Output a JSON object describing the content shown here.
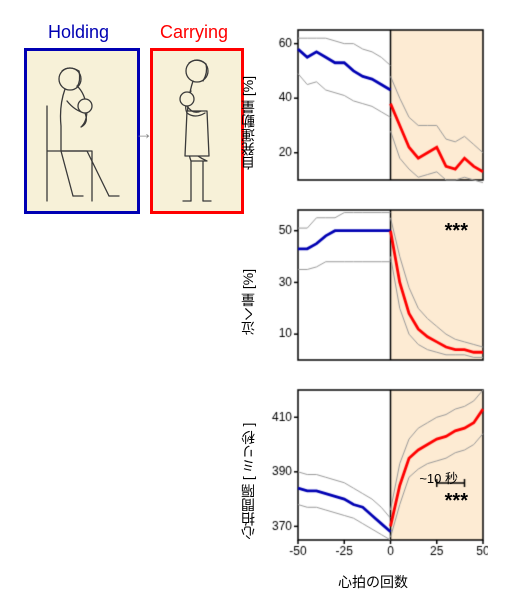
{
  "conditions": {
    "holding": {
      "label": "Holding",
      "color": "#0000b3",
      "box_border": "#0000b3"
    },
    "carrying": {
      "label": "Carrying",
      "color": "#ff0000",
      "box_border": "#ff0000"
    }
  },
  "illustration": {
    "box_background": "#f7f1d8",
    "arrow_glyph": "→",
    "arrow_color": "#888888",
    "stroke_color": "#3a3a3a"
  },
  "x_axis": {
    "label": "心拍の回数",
    "min": -50,
    "max": 50,
    "ticks": [
      -50,
      -25,
      0,
      25,
      50
    ]
  },
  "shading": {
    "right_half_color": "#fdebd3",
    "vline_color": "#000000"
  },
  "style": {
    "band_color": "#999999",
    "band_width": 1,
    "line_width_main": 2.8,
    "axis_color": "#000000",
    "tick_fontsize": 12,
    "label_fontsize": 14
  },
  "scale_bar": {
    "label": "~10 秒",
    "span": 15
  },
  "panels": [
    {
      "key": "voluntary_movement",
      "ylabel": "自発運動量 [%]",
      "ylim": [
        10,
        65
      ],
      "yticks": [
        20,
        40,
        60
      ],
      "significance": null,
      "series": {
        "x": [
          -50,
          -45,
          -40,
          -35,
          -30,
          -25,
          -20,
          -15,
          -10,
          -5,
          0,
          5,
          10,
          15,
          20,
          25,
          30,
          35,
          40,
          45,
          50
        ],
        "holding_mean": [
          58,
          55,
          57,
          55,
          53,
          53,
          50,
          48,
          47,
          45,
          43,
          null,
          null,
          null,
          null,
          null,
          null,
          null,
          null,
          null,
          null
        ],
        "holding_lo": [
          49,
          45,
          46,
          43,
          42,
          41,
          39,
          38,
          37,
          35,
          33,
          null,
          null,
          null,
          null,
          null,
          null,
          null,
          null,
          null,
          null
        ],
        "holding_hi": [
          62,
          62,
          62,
          62,
          61,
          60,
          60,
          58,
          57,
          55,
          52,
          null,
          null,
          null,
          null,
          null,
          null,
          null,
          null,
          null,
          null
        ],
        "carrying_mean": [
          null,
          null,
          null,
          null,
          null,
          null,
          null,
          null,
          null,
          null,
          38,
          30,
          22,
          18,
          20,
          22,
          15,
          14,
          18,
          15,
          13
        ],
        "carrying_lo": [
          null,
          null,
          null,
          null,
          null,
          null,
          null,
          null,
          null,
          null,
          28,
          18,
          14,
          11,
          12,
          13,
          10,
          10,
          11,
          10,
          9
        ],
        "carrying_hi": [
          null,
          null,
          null,
          null,
          null,
          null,
          null,
          null,
          null,
          null,
          48,
          40,
          33,
          30,
          30,
          30,
          25,
          24,
          26,
          23,
          20
        ]
      }
    },
    {
      "key": "crying",
      "ylabel": "泣く量 [%]",
      "ylim": [
        0,
        58
      ],
      "yticks": [
        10,
        30,
        50
      ],
      "significance": "***",
      "series": {
        "x": [
          -50,
          -45,
          -40,
          -35,
          -30,
          -25,
          -20,
          -15,
          -10,
          -5,
          0,
          5,
          10,
          15,
          20,
          25,
          30,
          35,
          40,
          45,
          50
        ],
        "holding_mean": [
          43,
          43,
          45,
          48,
          50,
          50,
          50,
          50,
          50,
          50,
          50,
          null,
          null,
          null,
          null,
          null,
          null,
          null,
          null,
          null,
          null
        ],
        "holding_lo": [
          35,
          35,
          36,
          38,
          38,
          38,
          38,
          38,
          38,
          38,
          38,
          null,
          null,
          null,
          null,
          null,
          null,
          null,
          null,
          null,
          null
        ],
        "holding_hi": [
          51,
          51,
          55,
          55,
          55,
          57,
          57,
          57,
          57,
          57,
          57,
          null,
          null,
          null,
          null,
          null,
          null,
          null,
          null,
          null,
          null
        ],
        "carrying_mean": [
          null,
          null,
          null,
          null,
          null,
          null,
          null,
          null,
          null,
          null,
          50,
          30,
          18,
          12,
          9,
          7,
          5,
          4,
          4,
          3,
          3
        ],
        "carrying_lo": [
          null,
          null,
          null,
          null,
          null,
          null,
          null,
          null,
          null,
          null,
          40,
          20,
          10,
          6,
          4,
          3,
          2,
          2,
          2,
          1,
          1
        ],
        "carrying_hi": [
          null,
          null,
          null,
          null,
          null,
          null,
          null,
          null,
          null,
          null,
          55,
          40,
          28,
          20,
          16,
          13,
          10,
          8,
          7,
          6,
          5
        ]
      }
    },
    {
      "key": "ibi",
      "ylabel": "心拍間隔 [ ミリ秒 ]",
      "ylim": [
        365,
        420
      ],
      "yticks": [
        370,
        390,
        410
      ],
      "significance": "***",
      "series": {
        "x": [
          -50,
          -45,
          -40,
          -35,
          -30,
          -25,
          -20,
          -15,
          -10,
          -5,
          0,
          5,
          10,
          15,
          20,
          25,
          30,
          35,
          40,
          45,
          50
        ],
        "holding_mean": [
          384,
          383,
          383,
          382,
          381,
          380,
          378,
          377,
          374,
          371,
          368,
          null,
          null,
          null,
          null,
          null,
          null,
          null,
          null,
          null,
          null
        ],
        "holding_lo": [
          378,
          377,
          377,
          376,
          375,
          374,
          373,
          371,
          369,
          367,
          365,
          null,
          null,
          null,
          null,
          null,
          null,
          null,
          null,
          null,
          null
        ],
        "holding_hi": [
          390,
          389,
          389,
          388,
          387,
          386,
          384,
          382,
          380,
          377,
          373,
          null,
          null,
          null,
          null,
          null,
          null,
          null,
          null,
          null,
          null
        ],
        "carrying_mean": [
          null,
          null,
          null,
          null,
          null,
          null,
          null,
          null,
          null,
          null,
          370,
          385,
          395,
          398,
          400,
          402,
          403,
          405,
          406,
          408,
          413
        ],
        "carrying_lo": [
          null,
          null,
          null,
          null,
          null,
          null,
          null,
          null,
          null,
          null,
          366,
          378,
          388,
          391,
          393,
          394,
          395,
          397,
          398,
          400,
          404
        ],
        "carrying_hi": [
          null,
          null,
          null,
          null,
          null,
          null,
          null,
          null,
          null,
          null,
          376,
          393,
          402,
          406,
          408,
          410,
          411,
          413,
          414,
          416,
          420
        ]
      }
    }
  ]
}
